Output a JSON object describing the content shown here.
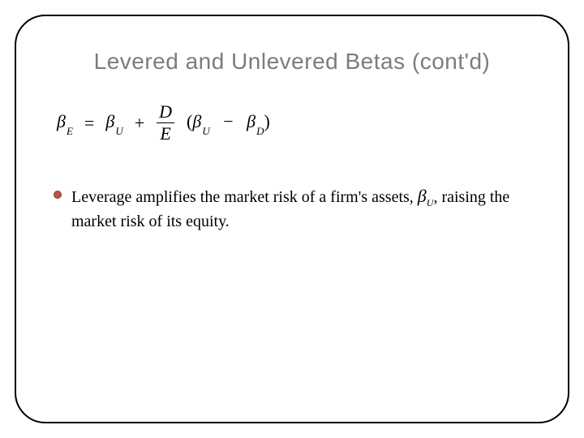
{
  "slide": {
    "title": "Levered and Unlevered Betas (cont'd)",
    "equation": {
      "lhs_var": "β",
      "lhs_sub": "E",
      "eq": "=",
      "term1_var": "β",
      "term1_sub": "U",
      "plus": "+",
      "frac_num": "D",
      "frac_den": "E",
      "lparen": "(",
      "term2_var": "β",
      "term2_sub": "U",
      "minus": "−",
      "term3_var": "β",
      "term3_sub": "D",
      "rparen": ")"
    },
    "bullet": {
      "text_before": "Leverage amplifies the market risk of a firm's assets, ",
      "beta_symbol": "β",
      "beta_sub": "U",
      "text_after": ", raising the market risk of its equity."
    }
  },
  "style": {
    "title_color": "#7c7c7c",
    "title_fontsize": 28,
    "bullet_color": "#c0504d",
    "bullet_border": "#8a3a38",
    "frame_border_color": "#000000",
    "frame_radius": 38,
    "body_fontsize": 20,
    "equation_fontsize": 22
  }
}
